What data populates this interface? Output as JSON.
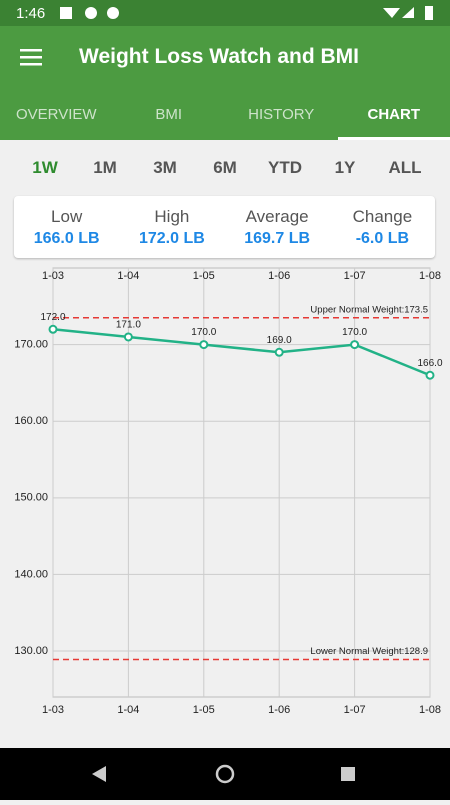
{
  "status_bar": {
    "time": "1:46"
  },
  "app_bar": {
    "title": "Weight Loss Watch and BMI"
  },
  "tabs": [
    "OVERVIEW",
    "BMI",
    "HISTORY",
    "CHART"
  ],
  "active_tab": 3,
  "ranges": [
    "1W",
    "1M",
    "3M",
    "6M",
    "YTD",
    "1Y",
    "ALL"
  ],
  "active_range": 0,
  "summary": [
    {
      "label": "Low",
      "value": "166.0 LB"
    },
    {
      "label": "High",
      "value": "172.0 LB"
    },
    {
      "label": "Average",
      "value": "169.7 LB"
    },
    {
      "label": "Change",
      "value": "-6.0 LB"
    }
  ],
  "chart_data": {
    "type": "line",
    "categories": [
      "1-03",
      "1-04",
      "1-05",
      "1-06",
      "1-07",
      "1-08"
    ],
    "values": [
      172,
      171,
      170,
      169,
      170,
      166
    ],
    "value_labels": [
      "172.0",
      "171.0",
      "170.0",
      "169.0",
      "170.0",
      "166.0"
    ],
    "color": "#22b287",
    "ylim": [
      124,
      180
    ],
    "yticks": [
      {
        "value": 130,
        "label": "130.00"
      },
      {
        "value": 140,
        "label": "140.00"
      },
      {
        "value": 150,
        "label": "150.00"
      },
      {
        "value": 160,
        "label": "160.00"
      },
      {
        "value": 170,
        "label": "170.00"
      }
    ],
    "grid": true,
    "reference_lines": [
      {
        "label": "Upper Normal Weight:173.5",
        "value": 173.5,
        "color": "#e53935"
      },
      {
        "label": "Lower Normal Weight:128.9",
        "value": 128.9,
        "color": "#e53935"
      }
    ]
  }
}
